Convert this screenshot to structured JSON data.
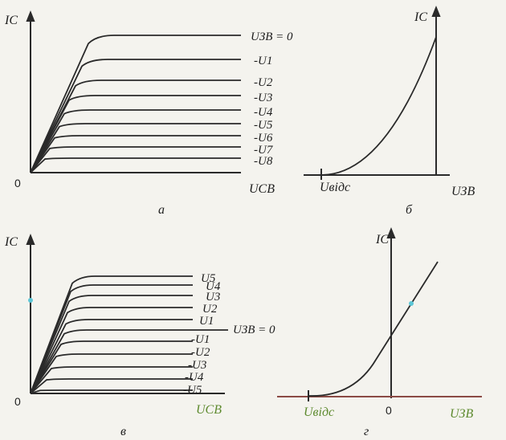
{
  "colors": {
    "ink": "#2a2a2a",
    "paper": "#f4f3ee",
    "green_label": "#5d8a2e",
    "red_axis": "#8b4a45",
    "cyan_dot": "#5cc6d6"
  },
  "panel_a": {
    "y_axis": "IC",
    "x_axis": "UСВ",
    "origin": "0",
    "panel_label": "а",
    "curve_labels": [
      "UЗВ = 0",
      "-U1",
      "-U2",
      "-U3",
      "-U4",
      "-U5",
      "-U6",
      "-U7",
      "-U8"
    ]
  },
  "panel_b": {
    "y_axis": "IC",
    "x_axis": "UЗВ",
    "threshold": "Uвідс",
    "panel_label": "б"
  },
  "panel_c": {
    "y_axis": "IC",
    "x_axis": "UСВ",
    "origin": "0",
    "panel_label": "в",
    "curve_labels": [
      "U5",
      "U4",
      "U3",
      "U2",
      "U1",
      "UЗВ = 0",
      "-U1",
      "-U2",
      "-U3",
      "-U4",
      "-U5"
    ]
  },
  "panel_d": {
    "y_axis": "IC",
    "x_axis": "UЗВ",
    "threshold": "Uвідс",
    "origin": "0",
    "panel_label": "г"
  }
}
